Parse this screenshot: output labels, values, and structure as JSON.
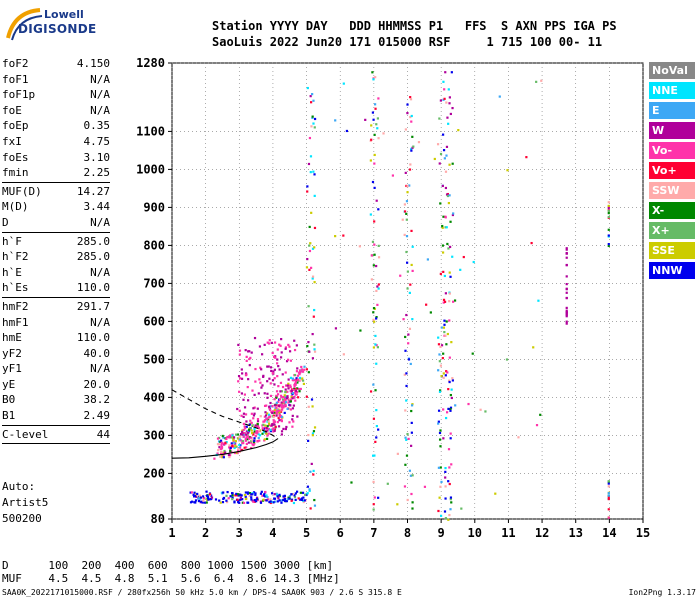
{
  "logo": {
    "line1": "Lowell",
    "line2": "DIGISONDE"
  },
  "header": {
    "row1": "Station YYYY DAY   DDD HHMMSS P1   FFS  S AXN PPS IGA PS",
    "row2": "SaoLuis 2022 Jun20 171 015000 RSF     1 715 100 00- 11"
  },
  "params": [
    {
      "name": "foF2",
      "value": "4.150"
    },
    {
      "name": "foF1",
      "value": "N/A"
    },
    {
      "name": "foF1p",
      "value": "N/A"
    },
    {
      "name": "foE",
      "value": "N/A"
    },
    {
      "name": "foEp",
      "value": "0.35"
    },
    {
      "name": "fxI",
      "value": "4.75"
    },
    {
      "name": "foEs",
      "value": "3.10"
    },
    {
      "name": "fmin",
      "value": "2.25"
    },
    {
      "sep": true
    },
    {
      "name": "MUF(D)",
      "value": "14.27"
    },
    {
      "name": "M(D)",
      "value": "3.44"
    },
    {
      "name": "D",
      "value": "N/A"
    },
    {
      "sep": true
    },
    {
      "name": "h`F",
      "value": "285.0"
    },
    {
      "name": "h`F2",
      "value": "285.0"
    },
    {
      "name": "h`E",
      "value": "N/A"
    },
    {
      "name": "h`Es",
      "value": "110.0"
    },
    {
      "sep": true
    },
    {
      "name": "hmF2",
      "value": "291.7"
    },
    {
      "name": "hmF1",
      "value": "N/A"
    },
    {
      "name": "hmE",
      "value": "110.0"
    },
    {
      "name": "yF2",
      "value": "40.0"
    },
    {
      "name": "yF1",
      "value": "N/A"
    },
    {
      "name": "yE",
      "value": "20.0"
    },
    {
      "name": "B0",
      "value": "38.2"
    },
    {
      "name": "B1",
      "value": "2.49"
    },
    {
      "sep": true
    },
    {
      "name": "C-level",
      "value": "44"
    },
    {
      "sep": true
    }
  ],
  "auto": {
    "line1": "Auto:",
    "line2": "Artist5",
    "line3": "500200"
  },
  "legend": [
    {
      "label": "NoVal",
      "color": "#888888"
    },
    {
      "label": "NNE",
      "color": "#00e5ff"
    },
    {
      "label": "E",
      "color": "#3da8f5"
    },
    {
      "label": "W",
      "color": "#b0009a"
    },
    {
      "label": "Vo-",
      "color": "#ff33aa"
    },
    {
      "label": "Vo+",
      "color": "#ff0033"
    },
    {
      "label": "SSW",
      "color": "#ffaaaa"
    },
    {
      "label": "X-",
      "color": "#008800"
    },
    {
      "label": "X+",
      "color": "#66bb66"
    },
    {
      "label": "SSE",
      "color": "#cccc00"
    },
    {
      "label": "NNW",
      "color": "#0000ee"
    }
  ],
  "chart_data": {
    "type": "scatter",
    "x_ticks": [
      "1",
      "2",
      "3",
      "4",
      "5",
      "6",
      "7",
      "8",
      "9",
      "10",
      "11",
      "12",
      "13",
      "14",
      "15"
    ],
    "y_ticks": [
      "80",
      "200",
      "300",
      "400",
      "500",
      "600",
      "700",
      "800",
      "900",
      "1000",
      "1100",
      "1280"
    ],
    "xlim": [
      1,
      15
    ],
    "ylim": [
      80,
      1280
    ],
    "xunit": "MHz",
    "yunit": "km",
    "grid": true,
    "traces": [
      {
        "name": "F2 trace",
        "x": [
          2.3,
          2.6,
          2.9,
          3.2,
          3.5,
          3.8,
          4.0,
          4.2,
          4.4,
          4.6,
          4.8
        ],
        "y": [
          255,
          262,
          270,
          285,
          300,
          320,
          345,
          370,
          395,
          420,
          450
        ]
      },
      {
        "name": "Es trace",
        "x": [
          1.5,
          2.0,
          2.5,
          3.0,
          3.5,
          4.0,
          4.5,
          5.0
        ],
        "y": [
          140,
          140,
          140,
          140,
          140,
          140,
          140,
          140
        ]
      }
    ],
    "profile_solid": {
      "x": [
        1,
        1.5,
        2,
        2.5,
        3,
        3.5,
        3.8,
        4.0,
        4.15
      ],
      "y": [
        240,
        241,
        245,
        250,
        258,
        268,
        276,
        283,
        291.7
      ]
    },
    "profile_dashed": {
      "x": [
        1,
        1.5,
        2,
        2.5,
        3,
        3.5,
        3.8,
        4.0,
        4.15
      ],
      "y": [
        420,
        395,
        370,
        350,
        335,
        320,
        310,
        300,
        291.7
      ]
    }
  },
  "bottom": {
    "line1": "D      100  200  400  600  800 1000 1500 3000 [km]",
    "line2": "MUF    4.5  4.5  4.8  5.1  5.6  6.4  8.6 14.3 [MHz]"
  },
  "footer": {
    "left": "SAA0K_2022171015000.RSF / 280fx256h 50 kHz 5.0 km / DPS-4 SAA0K 903 / 2.6 S 315.8 E",
    "right": "Ion2Png 1.3.17"
  }
}
